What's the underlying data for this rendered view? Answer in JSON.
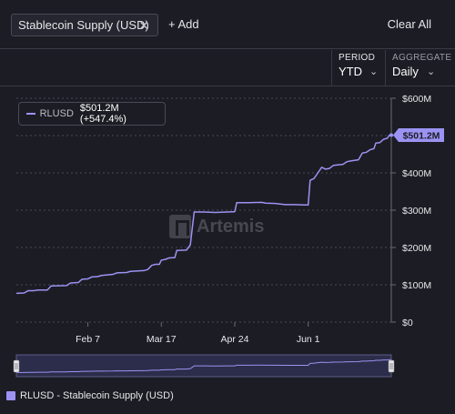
{
  "toolbar": {
    "chip_label": "Stablecoin Supply (USD)",
    "chip_close_icon": "close-icon",
    "add_label": "+ Add",
    "clear_label": "Clear All"
  },
  "controls": {
    "period_label": "PERIOD",
    "period_value": "YTD",
    "aggregate_label": "AGGREGATE",
    "aggregate_value": "Daily"
  },
  "tooltip": {
    "series": "RLUSD",
    "value": "$501.2M (+547.4%)"
  },
  "watermark": "Artemis",
  "legend_label": "RLUSD - Stablecoin Supply (USD)",
  "chart_data": {
    "type": "line",
    "x_ticks": [
      "Feb 7",
      "Mar 17",
      "Apr 24",
      "Jun 1"
    ],
    "y_ticks": [
      "$0",
      "$100M",
      "$200M",
      "$300M",
      "$400M",
      "$500M",
      "$600M"
    ],
    "ylim": [
      0,
      600
    ],
    "y_unit": "$M",
    "last_value_label": "$501.2M",
    "series": [
      {
        "name": "RLUSD",
        "color": "#9b93f2",
        "points": [
          [
            "Jan 1",
            77
          ],
          [
            "Jan 5",
            78
          ],
          [
            "Jan 7",
            84
          ],
          [
            "Jan 10",
            84
          ],
          [
            "Jan 12",
            86
          ],
          [
            "Jan 17",
            86
          ],
          [
            "Jan 19",
            97
          ],
          [
            "Jan 27",
            98
          ],
          [
            "Jan 29",
            105
          ],
          [
            "Feb 2",
            106
          ],
          [
            "Feb 4",
            115
          ],
          [
            "Feb 7",
            116
          ],
          [
            "Feb 9",
            121
          ],
          [
            "Feb 12",
            122
          ],
          [
            "Feb 14",
            125
          ],
          [
            "Feb 20",
            128
          ],
          [
            "Feb 22",
            132
          ],
          [
            "Feb 27",
            133
          ],
          [
            "Mar 1",
            136
          ],
          [
            "Mar 8",
            138
          ],
          [
            "Mar 10",
            141
          ],
          [
            "Mar 12",
            152
          ],
          [
            "Mar 14",
            155
          ],
          [
            "Mar 16",
            155
          ],
          [
            "Mar 17",
            166
          ],
          [
            "Mar 19",
            168
          ],
          [
            "Mar 21",
            172
          ],
          [
            "Mar 24",
            173
          ],
          [
            "Mar 25",
            192
          ],
          [
            "Mar 30",
            193
          ],
          [
            "Apr 1",
            207
          ],
          [
            "Apr 3",
            295
          ],
          [
            "Apr 8",
            295
          ],
          [
            "Apr 14",
            294
          ],
          [
            "Apr 20",
            295
          ],
          [
            "Apr 24",
            296
          ],
          [
            "Apr 25",
            320
          ],
          [
            "May 1",
            320
          ],
          [
            "May 8",
            321
          ],
          [
            "May 10",
            319
          ],
          [
            "May 15",
            318
          ],
          [
            "May 20",
            315
          ],
          [
            "May 25",
            315
          ],
          [
            "May 30",
            314
          ],
          [
            "Jun 1",
            314
          ],
          [
            "Jun 2",
            380
          ],
          [
            "Jun 4",
            385
          ],
          [
            "Jun 6",
            400
          ],
          [
            "Jun 8",
            415
          ],
          [
            "Jun 10",
            410
          ],
          [
            "Jun 12",
            412
          ],
          [
            "Jun 14",
            420
          ],
          [
            "Jun 19",
            423
          ],
          [
            "Jun 21",
            430
          ],
          [
            "Jun 23",
            432
          ],
          [
            "Jun 27",
            435
          ],
          [
            "Jun 29",
            453
          ],
          [
            "Jul 1",
            455
          ],
          [
            "Jul 3",
            462
          ],
          [
            "Jul 5",
            465
          ],
          [
            "Jul 6",
            480
          ],
          [
            "Jul 8",
            481
          ],
          [
            "Jul 10",
            490
          ],
          [
            "Jul 12",
            493
          ],
          [
            "Jul 13",
            501.2
          ],
          [
            "Jul 14",
            501.2
          ]
        ]
      }
    ],
    "grid": true,
    "legend_position": "bottom-left"
  }
}
